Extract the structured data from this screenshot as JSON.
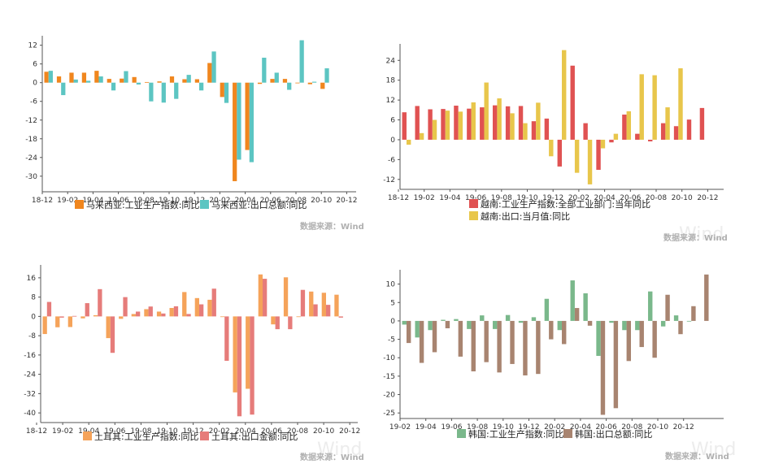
{
  "source_text": "数据来源：Wind",
  "watermark": "Wind",
  "chart_data": [
    {
      "type": "bar",
      "categories": [
        "18-12",
        "19-01",
        "19-02",
        "19-03",
        "19-04",
        "19-05",
        "19-06",
        "19-07",
        "19-08",
        "19-09",
        "19-10",
        "19-11",
        "19-12",
        "20-01",
        "20-02",
        "20-03",
        "20-04",
        "20-05",
        "20-06",
        "20-07",
        "20-08",
        "20-09",
        "20-10",
        "20-11",
        "20-12"
      ],
      "x_tick_labels": [
        "18-12",
        "19-02",
        "19-04",
        "19-06",
        "19-08",
        "19-10",
        "19-12",
        "20-02",
        "20-04",
        "20-06",
        "20-08",
        "20-10",
        "20-12"
      ],
      "y_ticks": [
        12,
        6,
        0,
        -6,
        -12,
        -18,
        -24,
        -30
      ],
      "ylim": [
        -35,
        14
      ],
      "series": [
        {
          "name": "马来西亚:工业生产指数:同比",
          "color": "#f0861e",
          "values": [
            3.5,
            2.0,
            3.2,
            3.2,
            3.8,
            1.2,
            1.3,
            1.8,
            0.2,
            0.4,
            2.0,
            1.1,
            1.1,
            6.3,
            -4.6,
            -31.6,
            -21.6,
            -0.4,
            1.2,
            1.2,
            -0.2,
            -0.5,
            -2.0,
            null,
            null
          ]
        },
        {
          "name": "马来西亚:出口总额:同比",
          "color": "#5cc5c2",
          "values": [
            3.8,
            -4.0,
            1.0,
            0.6,
            2.0,
            -2.5,
            3.7,
            -0.6,
            -6.0,
            -6.4,
            -5.2,
            2.5,
            -2.5,
            10.0,
            -6.5,
            -24.7,
            -25.5,
            8.0,
            3.2,
            -2.3,
            13.6,
            0.3,
            4.6,
            null,
            null
          ]
        }
      ]
    },
    {
      "type": "bar",
      "categories": [
        "18-12",
        "19-01",
        "19-02",
        "19-03",
        "19-04",
        "19-05",
        "19-06",
        "19-07",
        "19-08",
        "19-09",
        "19-10",
        "19-11",
        "19-12",
        "20-01",
        "20-02",
        "20-03",
        "20-04",
        "20-05",
        "20-06",
        "20-07",
        "20-08",
        "20-09",
        "20-10",
        "20-11",
        "20-12"
      ],
      "x_tick_labels": [
        "18-12",
        "19-02",
        "19-04",
        "19-06",
        "19-08",
        "19-10",
        "19-12",
        "20-02",
        "20-04",
        "20-06",
        "20-08",
        "20-10",
        "20-12"
      ],
      "y_ticks": [
        24,
        18,
        12,
        6,
        0,
        -6,
        -12
      ],
      "ylim": [
        -15,
        28
      ],
      "series": [
        {
          "name": "越南:工业生产指数:全部工业部门:当年同比",
          "color": "#e05252",
          "values": [
            8.3,
            10.2,
            9.2,
            9.3,
            10.3,
            9.4,
            9.8,
            10.4,
            10.1,
            10.2,
            5.6,
            6.4,
            -8.1,
            22.4,
            5.0,
            -9.1,
            -0.8,
            7.6,
            1.8,
            -0.5,
            5.0,
            4.1,
            6.1,
            9.6,
            null
          ]
        },
        {
          "name": "越南:出口:当月值:同比",
          "color": "#e8c64b",
          "values": [
            -1.5,
            2.0,
            6.0,
            8.8,
            8.5,
            11.3,
            17.3,
            12.5,
            8.0,
            5.0,
            11.2,
            -5.0,
            27.1,
            -10.0,
            -13.5,
            -2.6,
            1.8,
            8.6,
            19.8,
            19.5,
            9.8,
            21.6,
            null,
            null,
            null
          ]
        }
      ]
    },
    {
      "type": "bar",
      "categories": [
        "18-12",
        "19-01",
        "19-02",
        "19-03",
        "19-04",
        "19-05",
        "19-06",
        "19-07",
        "19-08",
        "19-09",
        "19-10",
        "19-11",
        "19-12",
        "20-01",
        "20-02",
        "20-03",
        "20-04",
        "20-05",
        "20-06",
        "20-07",
        "20-08",
        "20-09",
        "20-10",
        "20-11",
        "20-12"
      ],
      "x_tick_labels": [
        "18-12",
        "19-02",
        "19-04",
        "19-06",
        "19-08",
        "19-10",
        "19-12",
        "20-02",
        "20-04",
        "20-06",
        "20-08",
        "20-10",
        "20-12"
      ],
      "y_ticks": [
        16,
        8,
        0,
        -8,
        -16,
        -24,
        -32,
        -40
      ],
      "ylim": [
        -44,
        20
      ],
      "series": [
        {
          "name": "土耳其:工业生产指数:同比",
          "color": "#f5a35a",
          "values": [
            -7.3,
            -4.5,
            -4.4,
            -0.8,
            0.5,
            -9.0,
            -1.0,
            1.0,
            3.0,
            2.0,
            3.5,
            10.1,
            7.6,
            6.9,
            -0.2,
            -31.5,
            -30.0,
            17.4,
            -3.3,
            16.2,
            -0.2,
            10.3,
            9.8,
            9.0,
            null
          ]
        },
        {
          "name": "土耳其:出口金额:同比",
          "color": "#e67c7a",
          "values": [
            6.0,
            -0.5,
            0.2,
            5.5,
            11.3,
            -15.1,
            8.0,
            2.0,
            4.1,
            1.2,
            4.2,
            1.0,
            5.0,
            11.5,
            -18.4,
            -41.4,
            -40.7,
            15.6,
            -5.3,
            -5.3,
            11.0,
            5.0,
            4.8,
            -0.5,
            null
          ]
        }
      ]
    },
    {
      "type": "bar",
      "categories": [
        "18-12",
        "19-01",
        "19-02",
        "19-03",
        "19-04",
        "19-05",
        "19-06",
        "19-07",
        "19-08",
        "19-09",
        "19-10",
        "19-11",
        "19-12",
        "20-01",
        "20-02",
        "20-03",
        "20-04",
        "20-05",
        "20-06",
        "20-07",
        "20-08",
        "20-09",
        "20-10",
        "20-11",
        "20-12"
      ],
      "x_tick_labels": [
        "19-02",
        "19-04",
        "19-06",
        "19-08",
        "19-10",
        "19-12",
        "20-02",
        "20-04",
        "20-06",
        "20-08",
        "20-10",
        "20-12"
      ],
      "y_ticks": [
        10,
        5,
        0,
        -5,
        -10,
        -15,
        -20,
        -25
      ],
      "ylim": [
        -26.5,
        13
      ],
      "series": [
        {
          "name": "韩国:工业生产指数:同比",
          "color": "#7ab88b",
          "values": [
            -1.0,
            -4.5,
            -2.5,
            0.3,
            0.5,
            -2.2,
            1.5,
            -2.2,
            1.6,
            -0.5,
            1.0,
            6.0,
            -2.5,
            11.0,
            7.5,
            -9.5,
            -0.5,
            -2.5,
            -2.5,
            8.0,
            -1.5,
            1.5,
            0.0,
            null,
            null
          ]
        },
        {
          "name": "韩国:出口总额:同比",
          "color": "#a88470",
          "values": [
            -6.0,
            -11.4,
            -8.5,
            -2.0,
            -9.7,
            -13.7,
            -11.2,
            -14.0,
            -11.7,
            -14.8,
            -14.4,
            -5.0,
            -6.3,
            3.5,
            -1.3,
            -25.5,
            -23.7,
            -10.9,
            -7.1,
            -10.0,
            7.1,
            -3.6,
            4.0,
            12.6,
            null
          ]
        }
      ]
    }
  ]
}
